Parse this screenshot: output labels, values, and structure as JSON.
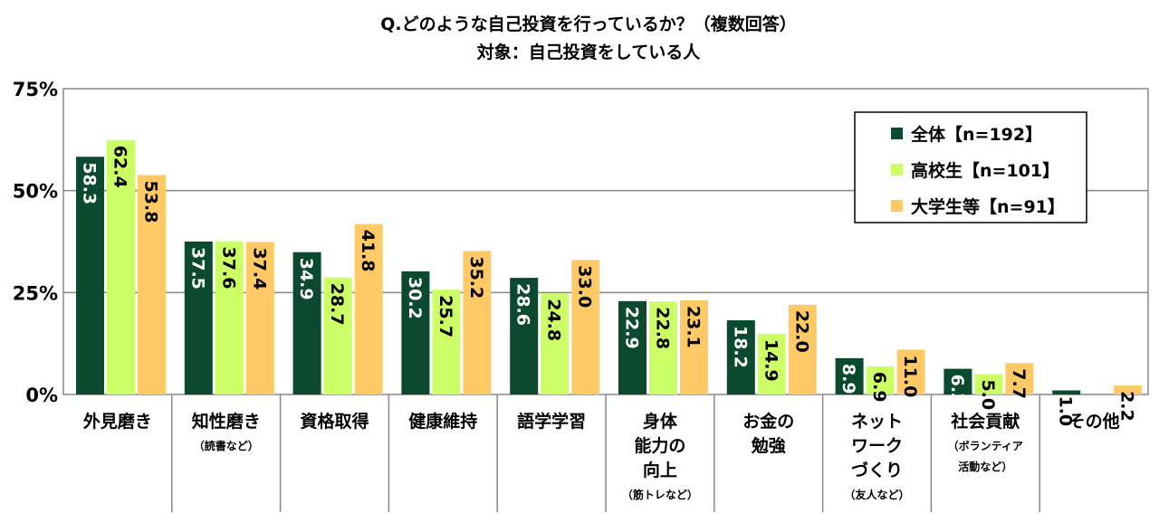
{
  "chart_data": {
    "type": "bar",
    "title": "Q.どのような自己投資を行っているか？（複数回答）",
    "subtitle": "対象：自己投資をしている人",
    "xlabel": "",
    "ylabel": "",
    "ylim": [
      0,
      75
    ],
    "yticks": [
      "0%",
      "25%",
      "50%",
      "75%"
    ],
    "ytick_values": [
      0,
      25,
      50,
      75
    ],
    "grid": true,
    "legend_position": "top-right",
    "categories": [
      {
        "lines": [
          "外見磨き"
        ],
        "note": ""
      },
      {
        "lines": [
          "知性磨き"
        ],
        "note": "（読書など）"
      },
      {
        "lines": [
          "資格取得"
        ],
        "note": ""
      },
      {
        "lines": [
          "健康維持"
        ],
        "note": ""
      },
      {
        "lines": [
          "語学学習"
        ],
        "note": ""
      },
      {
        "lines": [
          "身体",
          "能力の",
          "向上"
        ],
        "note": "（筋トレなど）"
      },
      {
        "lines": [
          "お金の",
          "勉強"
        ],
        "note": ""
      },
      {
        "lines": [
          "ネット",
          "ワーク",
          "づくり"
        ],
        "note": "（友人など）"
      },
      {
        "lines": [
          "社会貢献"
        ],
        "note": "（ボランティア|活動など）"
      },
      {
        "lines": [
          "その他"
        ],
        "note": ""
      }
    ],
    "series": [
      {
        "name": "全体【n=192】",
        "color": "#0b4a2e",
        "values": [
          58.3,
          37.5,
          34.9,
          30.2,
          28.6,
          22.9,
          18.2,
          8.9,
          6.3,
          1.0
        ],
        "labels": [
          "58.3",
          "37.5",
          "34.9",
          "30.2",
          "28.6",
          "22.9",
          "18.2",
          "8.9",
          "6.3",
          "1.0"
        ]
      },
      {
        "name": "高校生【n=101】",
        "color": "#ccff66",
        "values": [
          62.4,
          37.6,
          28.7,
          25.7,
          24.8,
          22.8,
          14.9,
          6.9,
          5.0,
          0
        ],
        "labels": [
          "62.4",
          "37.6",
          "28.7",
          "25.7",
          "24.8",
          "22.8",
          "14.9",
          "6.9",
          "5.0",
          ""
        ]
      },
      {
        "name": "大学生等【n=91】",
        "color": "#ffc966",
        "values": [
          53.8,
          37.4,
          41.8,
          35.2,
          33.0,
          23.1,
          22.0,
          11.0,
          7.7,
          2.2
        ],
        "labels": [
          "53.8",
          "37.4",
          "41.8",
          "35.2",
          "33.0",
          "23.1",
          "22.0",
          "11.0",
          "7.7",
          "2.2"
        ]
      }
    ]
  }
}
